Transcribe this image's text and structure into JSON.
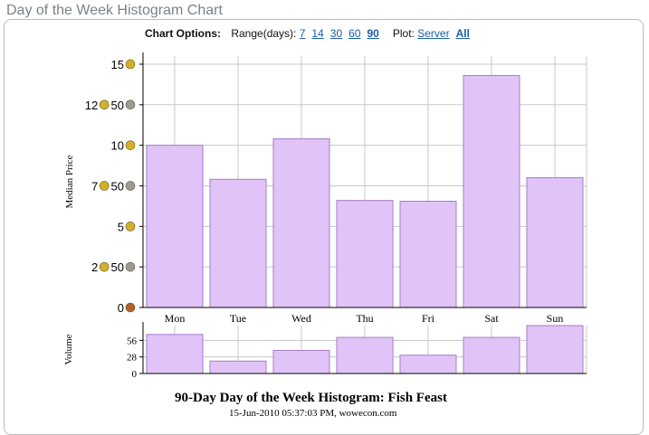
{
  "page": {
    "title": "Day of the Week Histogram Chart"
  },
  "options": {
    "label": "Chart Options:",
    "range_label": "Range(days):",
    "ranges": [
      "7",
      "14",
      "30",
      "60",
      "90"
    ],
    "active_range": "90",
    "plot_label": "Plot:",
    "plot_options": [
      "Server",
      "All"
    ],
    "active_plot": "All"
  },
  "colors": {
    "bar_fill": "#e0c4f8",
    "bar_stroke": "#a77bc9",
    "grid": "#c8c8c8",
    "axis": "#000000",
    "gold_coin": "#d4b02a",
    "silver_coin": "#9a9a9a",
    "copper_coin": "#b0602a"
  },
  "chart_data": [
    {
      "type": "bar",
      "categories": [
        "Mon",
        "Tue",
        "Wed",
        "Thu",
        "Fri",
        "Sat",
        "Sun"
      ],
      "values": [
        10,
        7.9,
        10.4,
        6.6,
        6.55,
        14.3,
        8
      ],
      "ylabel": "Median Price",
      "ylim": [
        0,
        15.5
      ],
      "yticks": [
        {
          "value": 15,
          "label": "15",
          "coins": [
            "gold"
          ]
        },
        {
          "value": 12.5,
          "label": "12",
          "label2": "50",
          "coins": [
            "gold",
            "silver"
          ]
        },
        {
          "value": 10,
          "label": "10",
          "coins": [
            "gold"
          ]
        },
        {
          "value": 7.5,
          "label": "7",
          "label2": "50",
          "coins": [
            "gold",
            "silver"
          ]
        },
        {
          "value": 5,
          "label": "5",
          "coins": [
            "gold"
          ]
        },
        {
          "value": 2.5,
          "label": "2",
          "label2": "50",
          "coins": [
            "gold",
            "silver"
          ]
        },
        {
          "value": 0,
          "label": "0",
          "coins": [
            "copper"
          ]
        }
      ],
      "grid": true
    },
    {
      "type": "bar",
      "categories": [
        "Mon",
        "Tue",
        "Wed",
        "Thu",
        "Fri",
        "Sat",
        "Sun"
      ],
      "values": [
        66,
        21,
        39,
        61,
        31,
        61,
        81
      ],
      "ylabel": "Volume",
      "ylim": [
        0,
        81
      ],
      "yticks": [
        {
          "value": 56,
          "label": "56"
        },
        {
          "value": 28,
          "label": "28"
        },
        {
          "value": 0,
          "label": "0"
        }
      ],
      "grid": true
    }
  ],
  "footer": {
    "title": "90-Day Day of the Week Histogram: Fish Feast",
    "subtitle": "15-Jun-2010 05:37:03 PM, wowecon.com"
  }
}
